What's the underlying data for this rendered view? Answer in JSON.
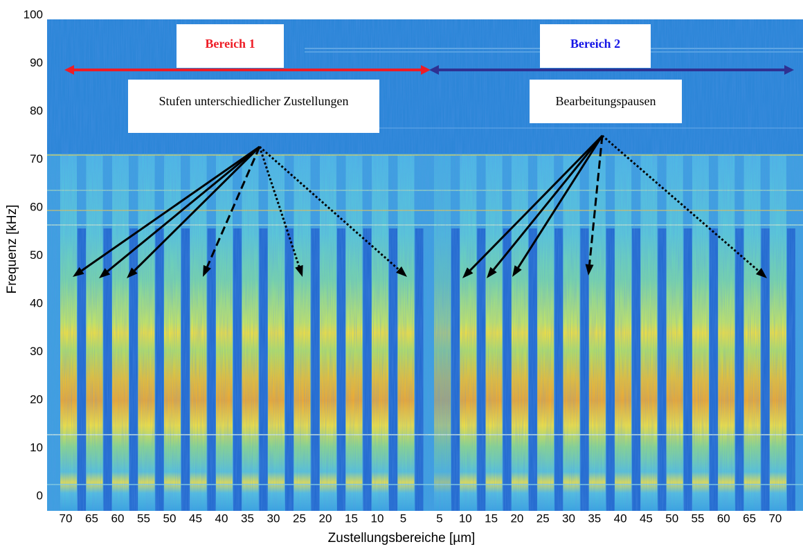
{
  "chart_data": {
    "type": "spectrogram",
    "xlabel": "Zustellungsbereiche [µm]",
    "ylabel": "Frequenz [kHz]",
    "categories": [
      "70",
      "65",
      "60",
      "55",
      "50",
      "45",
      "40",
      "35",
      "30",
      "25",
      "20",
      "15",
      "10",
      "5",
      "5",
      "10",
      "15",
      "20",
      "25",
      "30",
      "35",
      "40",
      "45",
      "50",
      "55",
      "60",
      "65",
      "70"
    ],
    "ylim": [
      -3,
      100
    ],
    "yticks": [
      0,
      10,
      20,
      30,
      40,
      50,
      60,
      70,
      80,
      90,
      100
    ],
    "regions": [
      {
        "label": "Bereich 1",
        "color": "#ee1c25"
      },
      {
        "label": "Bereich 2",
        "color": "#2e3192"
      }
    ],
    "notes": [
      "Stufen unterschiedlicher Zustellungen",
      "Bearbeitungspausen"
    ]
  }
}
